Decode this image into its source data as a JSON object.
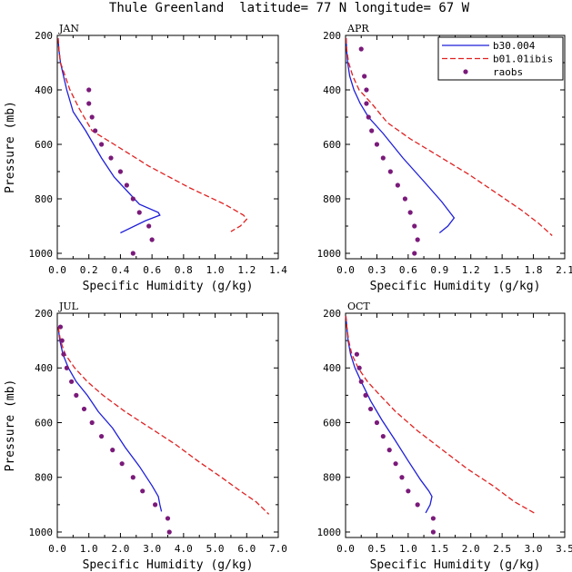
{
  "figure_title": "Thule Greenland  latitude= 77 N longitude= 67 W",
  "chart_data": [
    {
      "type": "line",
      "panel": "JAN",
      "xlabel": "Specific Humidity (g/kg)",
      "ylabel": "Pressure (mb)",
      "xlim": [
        0,
        1.4
      ],
      "ylim": [
        1020,
        200
      ],
      "xticks": [
        "0.0",
        "0.2",
        "0.4",
        "0.6",
        "0.8",
        "1.0",
        "1.2",
        "1.4"
      ],
      "xtick_values": [
        0,
        0.2,
        0.4,
        0.6,
        0.8,
        1.0,
        1.2,
        1.4
      ],
      "yticks": [
        "200",
        "400",
        "600",
        "800",
        "1000"
      ],
      "ytick_values": [
        200,
        400,
        600,
        800,
        1000
      ],
      "legend": false,
      "series": [
        {
          "name": "b30.004",
          "style": "solid",
          "color": "#1f1fd9",
          "points": [
            [
              0.005,
              210
            ],
            [
              0.01,
              250
            ],
            [
              0.02,
              300
            ],
            [
              0.04,
              350
            ],
            [
              0.06,
              400
            ],
            [
              0.1,
              480
            ],
            [
              0.18,
              550
            ],
            [
              0.28,
              650
            ],
            [
              0.36,
              720
            ],
            [
              0.52,
              820
            ],
            [
              0.64,
              850
            ],
            [
              0.65,
              860
            ],
            [
              0.56,
              880
            ],
            [
              0.4,
              925
            ]
          ]
        },
        {
          "name": "b01.01ibis",
          "style": "dashed",
          "color": "#e02020",
          "points": [
            [
              0.005,
              210
            ],
            [
              0.01,
              250
            ],
            [
              0.02,
              300
            ],
            [
              0.05,
              350
            ],
            [
              0.08,
              400
            ],
            [
              0.14,
              470
            ],
            [
              0.22,
              550
            ],
            [
              0.36,
              600
            ],
            [
              0.58,
              680
            ],
            [
              0.84,
              760
            ],
            [
              1.06,
              820
            ],
            [
              1.18,
              860
            ],
            [
              1.2,
              875
            ],
            [
              1.16,
              900
            ],
            [
              1.1,
              920
            ]
          ]
        },
        {
          "name": "raobs",
          "style": "dots",
          "color": "#7a1a7a",
          "points": [
            [
              0.2,
              400
            ],
            [
              0.2,
              450
            ],
            [
              0.22,
              500
            ],
            [
              0.24,
              550
            ],
            [
              0.28,
              600
            ],
            [
              0.34,
              650
            ],
            [
              0.4,
              700
            ],
            [
              0.44,
              750
            ],
            [
              0.48,
              800
            ],
            [
              0.52,
              850
            ],
            [
              0.58,
              900
            ],
            [
              0.6,
              950
            ],
            [
              0.48,
              1000
            ]
          ]
        }
      ]
    },
    {
      "type": "line",
      "panel": "APR",
      "xlabel": "Specific Humidity (g/kg)",
      "ylabel": "",
      "xlim": [
        0,
        2.1
      ],
      "ylim": [
        1020,
        200
      ],
      "xticks": [
        "0.0",
        "0.3",
        "0.6",
        "0.9",
        "1.2",
        "1.5",
        "1.8",
        "2.1"
      ],
      "xtick_values": [
        0,
        0.3,
        0.6,
        0.9,
        1.2,
        1.5,
        1.8,
        2.1
      ],
      "yticks": [
        "200",
        "400",
        "600",
        "800",
        "1000"
      ],
      "ytick_values": [
        200,
        400,
        600,
        800,
        1000
      ],
      "legend": true,
      "legend_position": "top-right",
      "series": [
        {
          "name": "b30.004",
          "style": "solid",
          "color": "#1f1fd9",
          "points": [
            [
              0.005,
              210
            ],
            [
              0.01,
              250
            ],
            [
              0.02,
              300
            ],
            [
              0.04,
              350
            ],
            [
              0.08,
              400
            ],
            [
              0.14,
              450
            ],
            [
              0.22,
              500
            ],
            [
              0.36,
              560
            ],
            [
              0.55,
              650
            ],
            [
              0.76,
              740
            ],
            [
              0.92,
              810
            ],
            [
              1.0,
              850
            ],
            [
              1.04,
              870
            ],
            [
              0.98,
              900
            ],
            [
              0.9,
              925
            ]
          ]
        },
        {
          "name": "b01.01ibis",
          "style": "dashed",
          "color": "#e02020",
          "points": [
            [
              0.005,
              210
            ],
            [
              0.01,
              250
            ],
            [
              0.03,
              300
            ],
            [
              0.07,
              350
            ],
            [
              0.13,
              400
            ],
            [
              0.25,
              450
            ],
            [
              0.4,
              520
            ],
            [
              0.62,
              580
            ],
            [
              0.88,
              640
            ],
            [
              1.18,
              710
            ],
            [
              1.45,
              780
            ],
            [
              1.68,
              840
            ],
            [
              1.85,
              890
            ],
            [
              1.98,
              935
            ]
          ]
        },
        {
          "name": "raobs",
          "style": "dots",
          "color": "#7a1a7a",
          "points": [
            [
              0.15,
              250
            ],
            [
              0.18,
              350
            ],
            [
              0.2,
              400
            ],
            [
              0.2,
              450
            ],
            [
              0.22,
              500
            ],
            [
              0.25,
              550
            ],
            [
              0.3,
              600
            ],
            [
              0.36,
              650
            ],
            [
              0.43,
              700
            ],
            [
              0.5,
              750
            ],
            [
              0.57,
              800
            ],
            [
              0.62,
              850
            ],
            [
              0.66,
              900
            ],
            [
              0.69,
              950
            ],
            [
              0.66,
              1000
            ]
          ]
        }
      ]
    },
    {
      "type": "line",
      "panel": "JUL",
      "xlabel": "Specific Humidity (g/kg)",
      "ylabel": "Pressure (mb)",
      "xlim": [
        0,
        7.0
      ],
      "ylim": [
        1020,
        200
      ],
      "xticks": [
        "0.0",
        "1.0",
        "2.0",
        "3.0",
        "4.0",
        "5.0",
        "6.0",
        "7.0"
      ],
      "xtick_values": [
        0,
        1,
        2,
        3,
        4,
        5,
        6,
        7
      ],
      "yticks": [
        "200",
        "400",
        "600",
        "800",
        "1000"
      ],
      "ytick_values": [
        200,
        400,
        600,
        800,
        1000
      ],
      "legend": false,
      "series": [
        {
          "name": "b30.004",
          "style": "solid",
          "color": "#1f1fd9",
          "points": [
            [
              0.03,
              250
            ],
            [
              0.08,
              300
            ],
            [
              0.18,
              350
            ],
            [
              0.35,
              400
            ],
            [
              0.6,
              450
            ],
            [
              0.95,
              500
            ],
            [
              1.3,
              560
            ],
            [
              1.75,
              620
            ],
            [
              2.15,
              690
            ],
            [
              2.6,
              760
            ],
            [
              3.0,
              830
            ],
            [
              3.2,
              870
            ],
            [
              3.25,
              900
            ],
            [
              3.3,
              925
            ]
          ]
        },
        {
          "name": "b01.01ibis",
          "style": "dashed",
          "color": "#e02020",
          "points": [
            [
              0.03,
              250
            ],
            [
              0.1,
              300
            ],
            [
              0.25,
              350
            ],
            [
              0.55,
              400
            ],
            [
              0.95,
              450
            ],
            [
              1.45,
              500
            ],
            [
              2.15,
              560
            ],
            [
              2.95,
              620
            ],
            [
              3.75,
              680
            ],
            [
              4.45,
              740
            ],
            [
              5.2,
              800
            ],
            [
              5.8,
              850
            ],
            [
              6.3,
              890
            ],
            [
              6.7,
              935
            ]
          ]
        },
        {
          "name": "raobs",
          "style": "dots",
          "color": "#7a1a7a",
          "points": [
            [
              0.1,
              250
            ],
            [
              0.15,
              300
            ],
            [
              0.2,
              350
            ],
            [
              0.3,
              400
            ],
            [
              0.45,
              450
            ],
            [
              0.6,
              500
            ],
            [
              0.85,
              550
            ],
            [
              1.1,
              600
            ],
            [
              1.4,
              650
            ],
            [
              1.75,
              700
            ],
            [
              2.05,
              750
            ],
            [
              2.4,
              800
            ],
            [
              2.7,
              850
            ],
            [
              3.1,
              900
            ],
            [
              3.5,
              950
            ],
            [
              3.55,
              1000
            ]
          ]
        }
      ]
    },
    {
      "type": "line",
      "panel": "OCT",
      "xlabel": "Specific Humidity (g/kg)",
      "ylabel": "",
      "xlim": [
        0,
        3.5
      ],
      "ylim": [
        1020,
        200
      ],
      "xticks": [
        "0.0",
        "0.5",
        "1.0",
        "1.5",
        "2.0",
        "2.5",
        "3.0",
        "3.5"
      ],
      "xtick_values": [
        0,
        0.5,
        1.0,
        1.5,
        2.0,
        2.5,
        3.0,
        3.5
      ],
      "yticks": [
        "200",
        "400",
        "600",
        "800",
        "1000"
      ],
      "ytick_values": [
        200,
        400,
        600,
        800,
        1000
      ],
      "legend": false,
      "series": [
        {
          "name": "b30.004",
          "style": "solid",
          "color": "#1f1fd9",
          "points": [
            [
              0.005,
              210
            ],
            [
              0.02,
              250
            ],
            [
              0.04,
              300
            ],
            [
              0.08,
              350
            ],
            [
              0.15,
              400
            ],
            [
              0.25,
              450
            ],
            [
              0.4,
              520
            ],
            [
              0.58,
              590
            ],
            [
              0.78,
              660
            ],
            [
              1.0,
              740
            ],
            [
              1.2,
              810
            ],
            [
              1.33,
              850
            ],
            [
              1.38,
              870
            ],
            [
              1.35,
              900
            ],
            [
              1.28,
              930
            ]
          ]
        },
        {
          "name": "b01.01ibis",
          "style": "dashed",
          "color": "#e02020",
          "points": [
            [
              0.005,
              210
            ],
            [
              0.02,
              250
            ],
            [
              0.05,
              300
            ],
            [
              0.1,
              350
            ],
            [
              0.2,
              400
            ],
            [
              0.35,
              450
            ],
            [
              0.55,
              500
            ],
            [
              0.8,
              560
            ],
            [
              1.15,
              630
            ],
            [
              1.55,
              700
            ],
            [
              1.95,
              770
            ],
            [
              2.35,
              830
            ],
            [
              2.7,
              890
            ],
            [
              3.05,
              935
            ]
          ]
        },
        {
          "name": "raobs",
          "style": "dots",
          "color": "#7a1a7a",
          "points": [
            [
              0.18,
              350
            ],
            [
              0.22,
              400
            ],
            [
              0.25,
              450
            ],
            [
              0.32,
              500
            ],
            [
              0.4,
              550
            ],
            [
              0.5,
              600
            ],
            [
              0.6,
              650
            ],
            [
              0.7,
              700
            ],
            [
              0.8,
              750
            ],
            [
              0.9,
              800
            ],
            [
              1.0,
              850
            ],
            [
              1.15,
              900
            ],
            [
              1.4,
              950
            ],
            [
              1.4,
              1000
            ]
          ]
        }
      ]
    }
  ]
}
